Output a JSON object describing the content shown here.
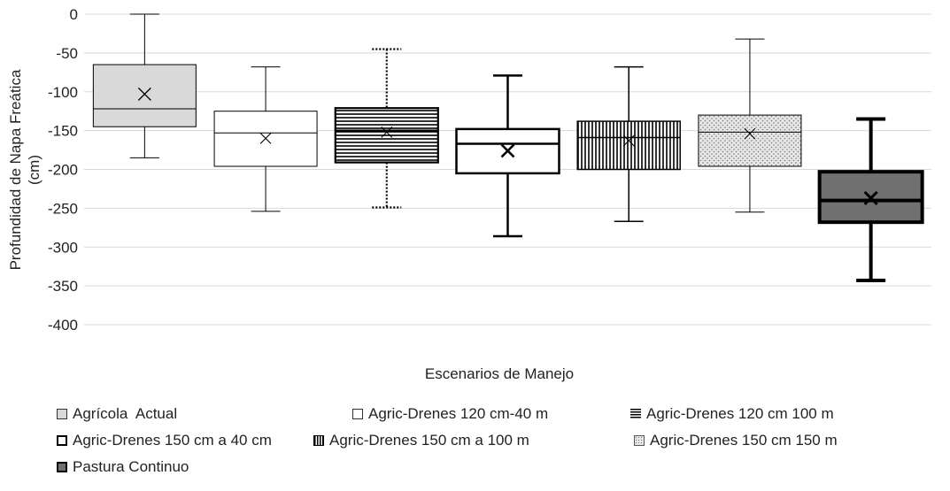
{
  "chart_data": {
    "type": "boxplot",
    "title": "",
    "xlabel": "Escenarios de Manejo",
    "ylabel_lines": [
      "Profundidad de Napa Freática",
      "(cm)"
    ],
    "ylim": [
      -400,
      0
    ],
    "yticks": [
      0,
      -50,
      -100,
      -150,
      -200,
      -250,
      -300,
      -350,
      -400
    ],
    "ytick_labels": [
      "0",
      "-50",
      "-100",
      "-150",
      "-200",
      "-250",
      "-300",
      "-350",
      "-400"
    ],
    "grid": true,
    "legend_position": "bottom",
    "series": [
      {
        "name": "Agrícola  Actual",
        "whisker_high": 0,
        "q3": -65,
        "median": -122,
        "q1": -145,
        "whisker_low": -185,
        "mean": -103,
        "fill": "#d9d9d9",
        "pattern": "solid"
      },
      {
        "name": "Agric-Drenes 120 cm-40 m",
        "whisker_high": -68,
        "q3": -125,
        "median": -153,
        "q1": -196,
        "whisker_low": -254,
        "mean": -160,
        "fill": "#ffffff",
        "pattern": "solid"
      },
      {
        "name": "Agric-Drenes 120 cm 100 m",
        "whisker_high": -45,
        "q3": -121,
        "median": -150,
        "q1": -191,
        "whisker_low": -249,
        "mean": -152,
        "fill": "#ffffff",
        "pattern": "horizontal"
      },
      {
        "name": "Agric-Drenes 150 cm a 40 cm",
        "whisker_high": -79,
        "q3": -148,
        "median": -167,
        "q1": -205,
        "whisker_low": -286,
        "mean": -176,
        "fill": "#ffffff",
        "pattern": "solid"
      },
      {
        "name": "Agric-Drenes 150 cm a 100 m",
        "whisker_high": -68,
        "q3": -138,
        "median": -159,
        "q1": -200,
        "whisker_low": -267,
        "mean": -163,
        "fill": "#ffffff",
        "pattern": "vertical"
      },
      {
        "name": "Agric-Drenes 150 cm 150 m",
        "whisker_high": -32,
        "q3": -130,
        "median": -152,
        "q1": -196,
        "whisker_low": -255,
        "mean": -154,
        "fill": "#ffffff",
        "pattern": "dots"
      },
      {
        "name": "Pastura Continuo",
        "whisker_high": -135,
        "q3": -203,
        "median": -240,
        "q1": -268,
        "whisker_low": -343,
        "mean": -237,
        "fill": "#707070",
        "pattern": "solid"
      }
    ]
  }
}
